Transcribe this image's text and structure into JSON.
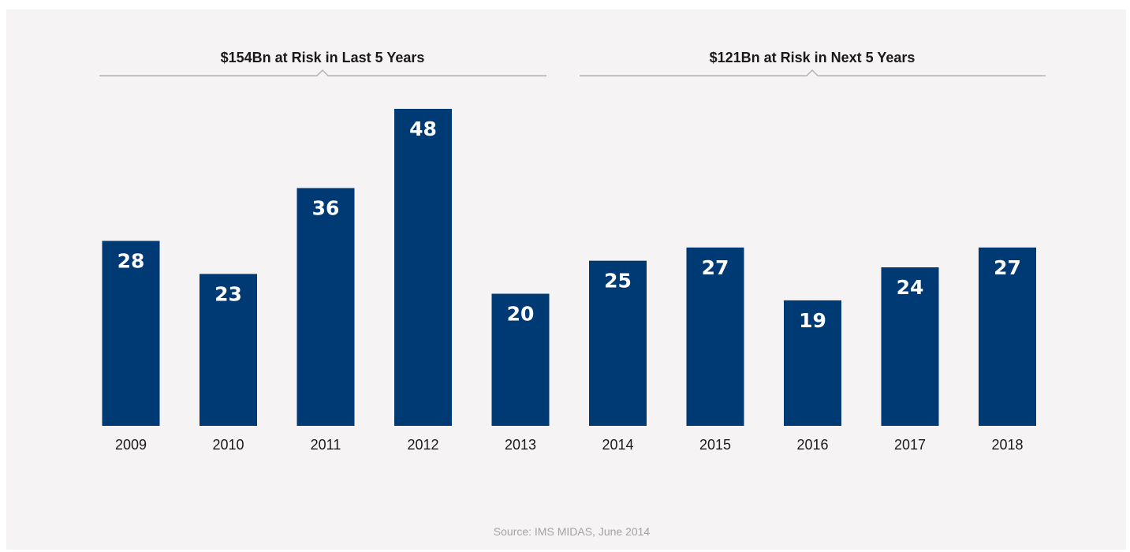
{
  "chart_data": {
    "type": "bar",
    "categories": [
      "2009",
      "2010",
      "2011",
      "2012",
      "2013",
      "2014",
      "2015",
      "2016",
      "2017",
      "2018"
    ],
    "values": [
      28,
      23,
      36,
      48,
      20,
      25,
      27,
      19,
      24,
      27
    ],
    "groups": [
      {
        "title": "$154Bn at Risk in Last 5 Years",
        "categories": [
          "2009",
          "2010",
          "2011",
          "2012",
          "2013"
        ]
      },
      {
        "title": "$121Bn at Risk in Next 5 Years",
        "categories": [
          "2014",
          "2015",
          "2016",
          "2017",
          "2018"
        ]
      }
    ],
    "ylim": [
      0,
      50
    ],
    "grid": false,
    "bar_color": "#003a75",
    "xlabel": "",
    "ylabel": ""
  },
  "source": "Source: IMS MIDAS, June 2014"
}
